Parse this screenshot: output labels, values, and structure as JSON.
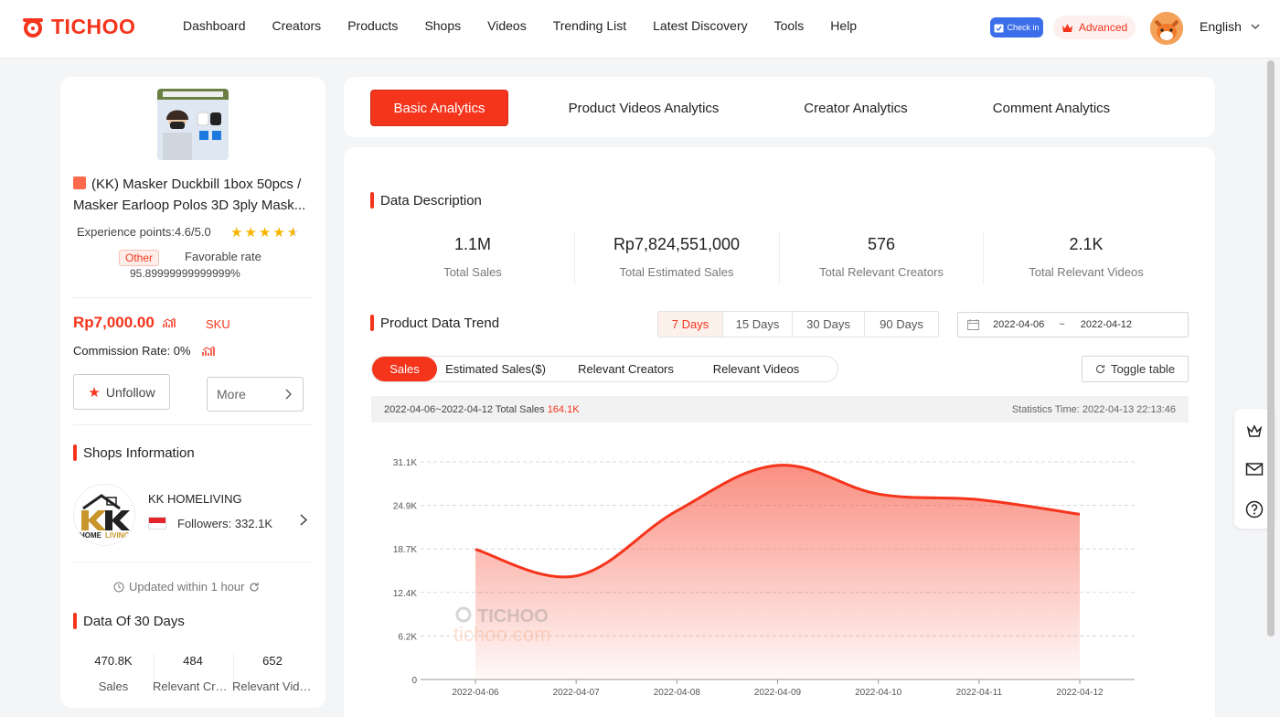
{
  "brand": {
    "name": "TICHOO",
    "accent": "#f5341c"
  },
  "nav": [
    "Dashboard",
    "Creators",
    "Products",
    "Shops",
    "Videos",
    "Trending List",
    "Latest Discovery",
    "Tools",
    "Help"
  ],
  "header": {
    "checkin_label": "Check in",
    "advanced_label": "Advanced",
    "language": "English"
  },
  "product": {
    "title": "(KK) Masker Duckbill 1box 50pcs / Masker Earloop Polos 3D 3ply Mask...",
    "experience_label": "Experience points:4.6/5.0",
    "rating": 4.6,
    "category_badge": "Other",
    "favorable_label": "Favorable rate",
    "favorable_value": "95.89999999999999%",
    "price": "Rp7,000.00",
    "sku_label": "SKU",
    "commission": "Commission Rate: 0%",
    "unfollow_label": "Unfollow",
    "more_label": "More"
  },
  "shop": {
    "section_title": "Shops Information",
    "name": "KK HOMELIVING",
    "followers": "Followers: 332.1K",
    "updated": "Updated within 1 hour",
    "logo_text_1": "HOME",
    "logo_text_2": "LIVING"
  },
  "data30": {
    "section_title": "Data Of 30 Days",
    "items": [
      {
        "value": "470.8K",
        "label": "Sales"
      },
      {
        "value": "484",
        "label": "Relevant Creators"
      },
      {
        "value": "652",
        "label": "Relevant Videos"
      }
    ]
  },
  "tabs": [
    "Basic Analytics",
    "Product Videos Analytics",
    "Creator Analytics",
    "Comment Analytics"
  ],
  "description": {
    "title": "Data Description",
    "kpis": [
      {
        "value": "1.1M",
        "label": "Total Sales"
      },
      {
        "value": "Rp7,824,551,000",
        "label": "Total Estimated Sales"
      },
      {
        "value": "576",
        "label": "Total Relevant Creators"
      },
      {
        "value": "2.1K",
        "label": "Total Relevant Videos"
      }
    ]
  },
  "trend": {
    "title": "Product Data Trend",
    "day_options": [
      "7 Days",
      "15 Days",
      "30 Days",
      "90 Days"
    ],
    "selected_days": "7 Days",
    "date_start": "2022-04-06",
    "date_sep": "~",
    "date_end": "2022-04-12",
    "metric_options": [
      "Sales",
      "Estimated Sales($)",
      "Relevant Creators",
      "Relevant Videos"
    ],
    "selected_metric": "Sales",
    "toggle_label": "Toggle table",
    "summary_prefix": "2022-04-06~2022-04-12 Total Sales",
    "summary_value": "164.1K",
    "stat_time": "Statistics Time: 2022-04-13 22:13:46",
    "watermark_1": "TICHOO",
    "watermark_2": "tichoo.com"
  },
  "chart_data": {
    "type": "area",
    "x": [
      "2022-04-06",
      "2022-04-07",
      "2022-04-08",
      "2022-04-09",
      "2022-04-10",
      "2022-04-11",
      "2022-04-12"
    ],
    "series": [
      {
        "values": [
          18600,
          14800,
          24100,
          30600,
          26500,
          25700,
          23600
        ]
      }
    ],
    "yticks": [
      "0",
      "6.2K",
      "12.4K",
      "18.7K",
      "24.9K",
      "31.1K"
    ],
    "ylim": [
      0,
      31100
    ],
    "grid": true,
    "color": "#f5341c"
  }
}
